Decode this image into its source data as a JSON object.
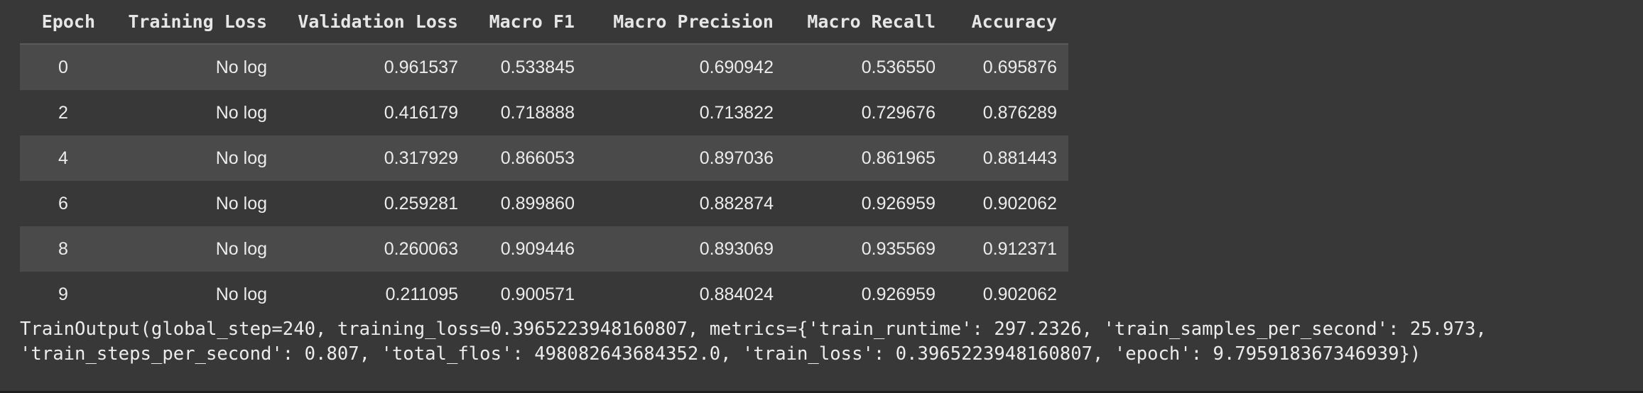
{
  "table": {
    "headers": [
      "Epoch",
      "Training Loss",
      "Validation Loss",
      "Macro F1",
      "Macro Precision",
      "Macro Recall",
      "Accuracy"
    ],
    "rows": [
      [
        "0",
        "No log",
        "0.961537",
        "0.533845",
        "0.690942",
        "0.536550",
        "0.695876"
      ],
      [
        "2",
        "No log",
        "0.416179",
        "0.718888",
        "0.713822",
        "0.729676",
        "0.876289"
      ],
      [
        "4",
        "No log",
        "0.317929",
        "0.866053",
        "0.897036",
        "0.861965",
        "0.881443"
      ],
      [
        "6",
        "No log",
        "0.259281",
        "0.899860",
        "0.882874",
        "0.926959",
        "0.902062"
      ],
      [
        "8",
        "No log",
        "0.260063",
        "0.909446",
        "0.893069",
        "0.935569",
        "0.912371"
      ],
      [
        "9",
        "No log",
        "0.211095",
        "0.900571",
        "0.884024",
        "0.926959",
        "0.902062"
      ]
    ]
  },
  "train_output": {
    "line1": "TrainOutput(global_step=240, training_loss=0.3965223948160807, metrics={'train_runtime': 297.2326, 'train_samples_per_second': 25.973,",
    "line2": "'train_steps_per_second': 0.807, 'total_flos': 498082643684352.0, 'train_loss': 0.3965223948160807, 'epoch': 9.795918367346939})"
  }
}
